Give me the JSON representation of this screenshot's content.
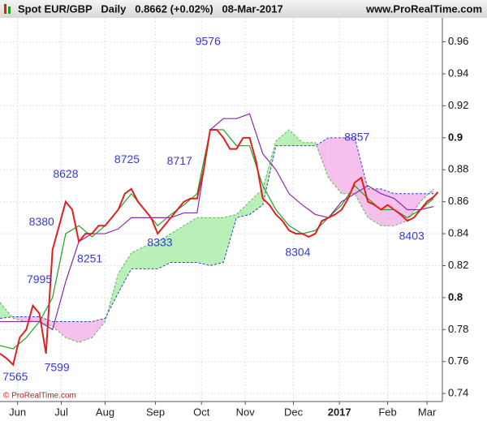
{
  "chart_data": {
    "type": "line",
    "title": "Spot EUR/GBP   Daily   0.8662 (+0.02%)   08-Mar-2017",
    "source": "www.ProRealTime.com",
    "copyright": "© ProRealTime.com",
    "xlim": [
      0,
      202
    ],
    "ylim": [
      0.735,
      0.975
    ],
    "yticks": [
      0.74,
      0.76,
      0.78,
      0.8,
      0.82,
      0.84,
      0.86,
      0.88,
      0.9,
      0.92,
      0.94,
      0.96
    ],
    "xticks": [
      {
        "value": 8,
        "label": "Jun"
      },
      {
        "value": 28,
        "label": "Jul"
      },
      {
        "value": 48,
        "label": "Aug"
      },
      {
        "value": 71,
        "label": "Sep"
      },
      {
        "value": 92,
        "label": "Oct"
      },
      {
        "value": 112,
        "label": "Nov"
      },
      {
        "value": 134,
        "label": "Dec"
      },
      {
        "value": 155,
        "label": "2017"
      },
      {
        "value": 177,
        "label": "Feb"
      },
      {
        "value": 195,
        "label": "Mar"
      }
    ],
    "grid": true,
    "price": {
      "color": "#e02020",
      "x": [
        0,
        3,
        6,
        9,
        12,
        15,
        18,
        21,
        24,
        27,
        30,
        33,
        36,
        39,
        42,
        45,
        48,
        51,
        54,
        57,
        60,
        63,
        66,
        69,
        72,
        75,
        78,
        81,
        84,
        87,
        90,
        93,
        96,
        99,
        102,
        105,
        108,
        111,
        114,
        117,
        120,
        123,
        126,
        129,
        132,
        135,
        138,
        141,
        144,
        147,
        150,
        153,
        156,
        159,
        162,
        165,
        168,
        171,
        174,
        177,
        180,
        183,
        186,
        189,
        192,
        195,
        198,
        200
      ],
      "values": [
        0.765,
        0.762,
        0.758,
        0.775,
        0.78,
        0.795,
        0.79,
        0.765,
        0.83,
        0.845,
        0.86,
        0.855,
        0.835,
        0.84,
        0.84,
        0.845,
        0.845,
        0.85,
        0.855,
        0.865,
        0.868,
        0.86,
        0.855,
        0.85,
        0.84,
        0.845,
        0.85,
        0.855,
        0.86,
        0.862,
        0.862,
        0.88,
        0.905,
        0.905,
        0.9,
        0.893,
        0.893,
        0.9,
        0.9,
        0.885,
        0.862,
        0.858,
        0.852,
        0.848,
        0.842,
        0.84,
        0.84,
        0.838,
        0.84,
        0.848,
        0.85,
        0.852,
        0.855,
        0.862,
        0.872,
        0.875,
        0.86,
        0.858,
        0.855,
        0.858,
        0.855,
        0.852,
        0.848,
        0.85,
        0.855,
        0.86,
        0.863,
        0.866
      ]
    },
    "indicator_x": [
      0,
      6,
      12,
      18,
      24,
      30,
      36,
      42,
      48,
      54,
      60,
      66,
      72,
      78,
      84,
      90,
      96,
      102,
      108,
      114,
      120,
      126,
      132,
      138,
      144,
      150,
      156,
      162,
      168,
      174,
      180,
      186,
      192,
      198
    ],
    "series": [
      {
        "color": "#22a022",
        "values": [
          0.77,
          0.768,
          0.775,
          0.785,
          0.8,
          0.84,
          0.845,
          0.838,
          0.845,
          0.855,
          0.865,
          0.855,
          0.845,
          0.852,
          0.858,
          0.865,
          0.905,
          0.905,
          0.895,
          0.895,
          0.87,
          0.855,
          0.845,
          0.84,
          0.842,
          0.85,
          0.858,
          0.87,
          0.862,
          0.855,
          0.855,
          0.85,
          0.855,
          0.862
        ]
      },
      {
        "color": "#8a2aa8",
        "values": [
          0.785,
          0.785,
          0.785,
          0.785,
          0.78,
          0.81,
          0.835,
          0.84,
          0.84,
          0.843,
          0.85,
          0.85,
          0.85,
          0.85,
          0.853,
          0.853,
          0.905,
          0.912,
          0.912,
          0.915,
          0.89,
          0.88,
          0.865,
          0.858,
          0.852,
          0.85,
          0.86,
          0.865,
          0.87,
          0.865,
          0.862,
          0.855,
          0.855,
          0.857
        ]
      }
    ],
    "cloud": {
      "up_color": "#b8f0b8",
      "down_color": "#f6c0ec",
      "span_a": {
        "color": "#55bb55",
        "values": [
          0.797,
          0.787,
          0.785,
          0.785,
          0.782,
          0.775,
          0.772,
          0.775,
          0.785,
          0.815,
          0.828,
          0.832,
          0.835,
          0.84,
          0.845,
          0.85,
          0.85,
          0.85,
          0.852,
          0.86,
          0.868,
          0.898,
          0.905,
          0.897,
          0.897,
          0.875,
          0.865,
          0.865,
          0.85,
          0.845,
          0.845,
          0.848,
          0.86,
          0.868
        ]
      },
      "span_b": {
        "color": "#3344cc",
        "values": [
          0.787,
          0.788,
          0.788,
          0.788,
          0.785,
          0.785,
          0.785,
          0.785,
          0.787,
          0.803,
          0.818,
          0.818,
          0.818,
          0.822,
          0.822,
          0.822,
          0.82,
          0.822,
          0.85,
          0.852,
          0.858,
          0.895,
          0.895,
          0.895,
          0.895,
          0.9,
          0.9,
          0.9,
          0.868,
          0.868,
          0.865,
          0.865,
          0.865,
          0.865
        ]
      }
    },
    "annotations": [
      {
        "text": "9576",
        "x": 95,
        "y": 0.96
      },
      {
        "text": "8628",
        "x": 30,
        "y": 0.877
      },
      {
        "text": "8725",
        "x": 58,
        "y": 0.886
      },
      {
        "text": "8717",
        "x": 82,
        "y": 0.885
      },
      {
        "text": "8380",
        "x": 19,
        "y": 0.847
      },
      {
        "text": "8251",
        "x": 41,
        "y": 0.824
      },
      {
        "text": "8333",
        "x": 73,
        "y": 0.834
      },
      {
        "text": "7995",
        "x": 18,
        "y": 0.811
      },
      {
        "text": "7599",
        "x": 26,
        "y": 0.756
      },
      {
        "text": "7565",
        "x": 7,
        "y": 0.75
      },
      {
        "text": "8304",
        "x": 136,
        "y": 0.828
      },
      {
        "text": "8857",
        "x": 163,
        "y": 0.9
      },
      {
        "text": "8403",
        "x": 188,
        "y": 0.838
      }
    ]
  }
}
